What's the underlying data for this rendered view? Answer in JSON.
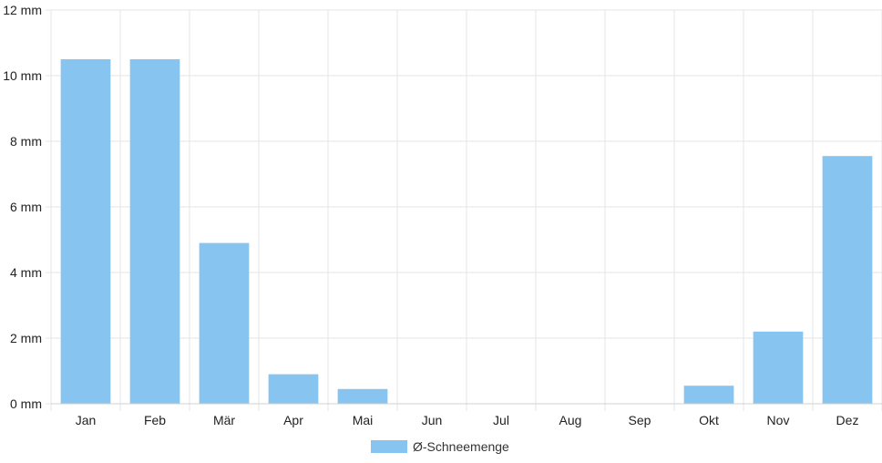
{
  "chart_data": {
    "type": "bar",
    "categories": [
      "Jan",
      "Feb",
      "Mär",
      "Apr",
      "Mai",
      "Jun",
      "Jul",
      "Aug",
      "Sep",
      "Okt",
      "Nov",
      "Dez"
    ],
    "series": [
      {
        "name": "Ø-Schneemenge",
        "values": [
          10.5,
          10.5,
          4.9,
          0.9,
          0.45,
          0,
          0,
          0,
          0,
          0.55,
          2.2,
          7.55
        ]
      }
    ],
    "unit": "mm",
    "y_ticks": [
      "0 mm",
      "2 mm",
      "4 mm",
      "6 mm",
      "8 mm",
      "10 mm",
      "12 mm"
    ],
    "ylim": [
      0,
      12
    ],
    "grid": true,
    "legend_position": "bottom",
    "bar_color": "#87c5f0",
    "grid_color": "#e6e6e6"
  }
}
